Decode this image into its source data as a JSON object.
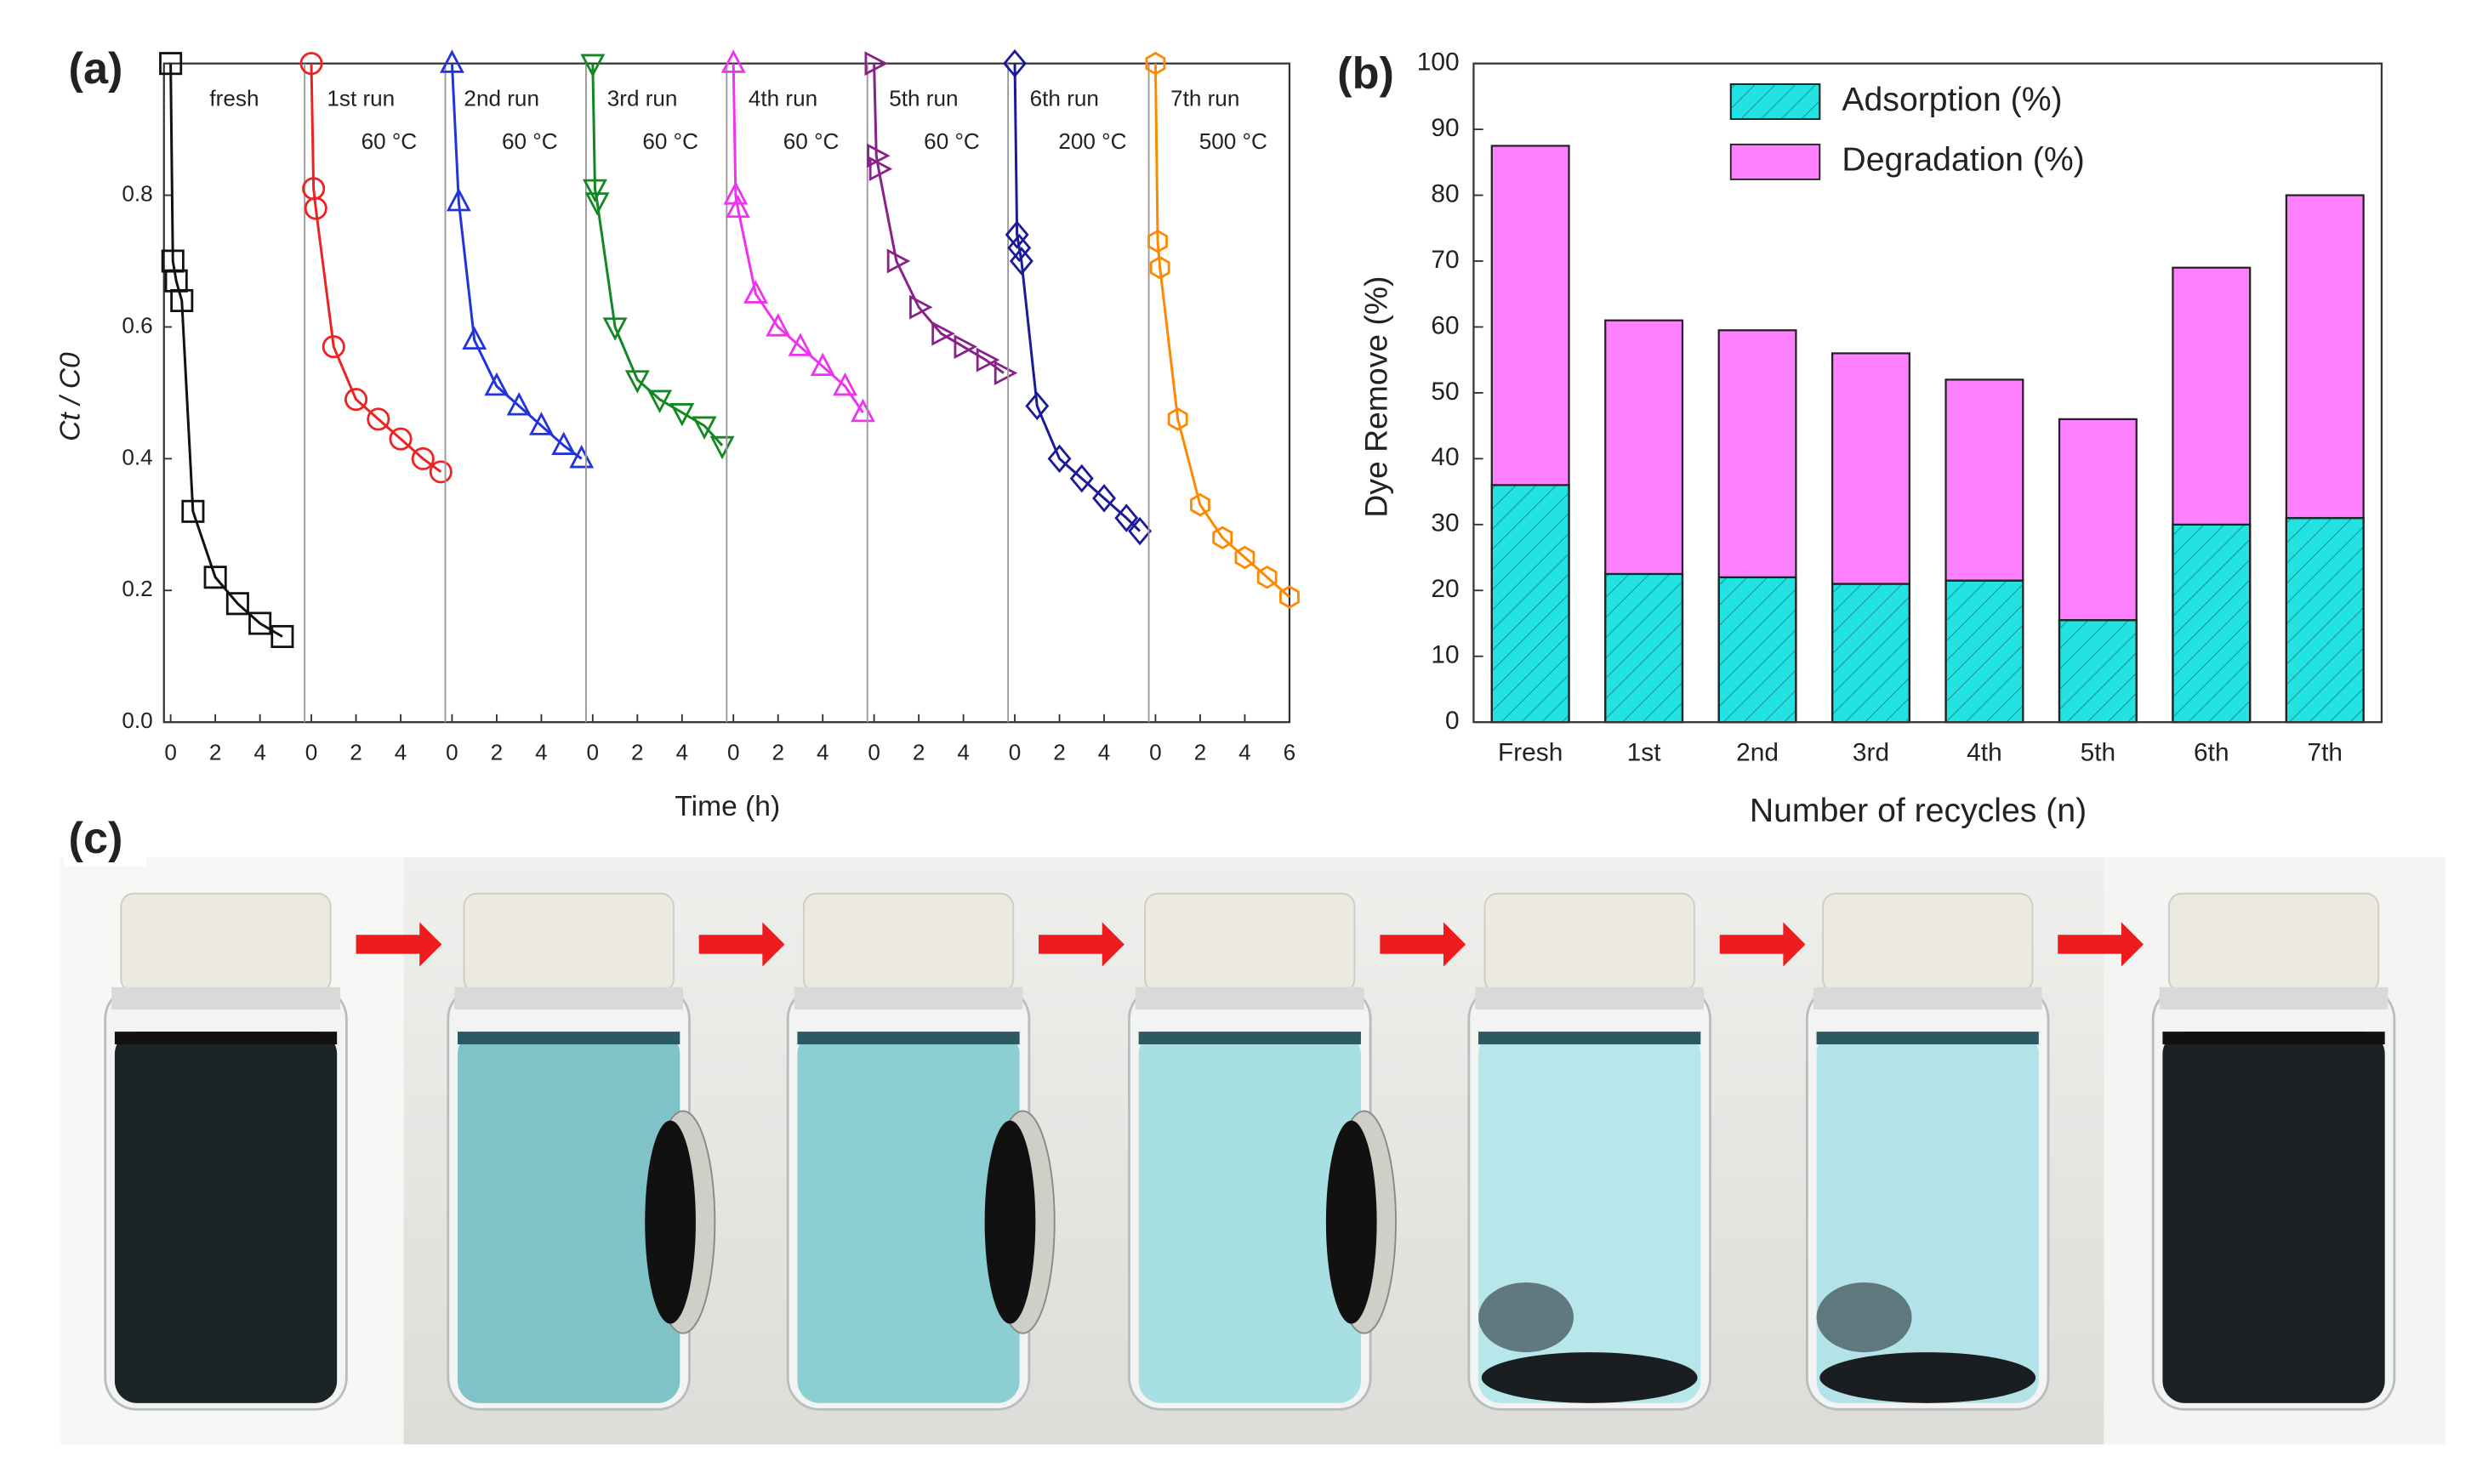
{
  "panel_labels": [
    "(a)",
    "(b)",
    "(c)"
  ],
  "chart_data": [
    {
      "type": "line",
      "ylabel": "Ct / C0",
      "xlabel": "Time (h)",
      "xlim": [
        -0.3,
        6
      ],
      "ylim": [
        0,
        1
      ],
      "yticks": [
        {
          "value": 0,
          "label": "0.0"
        },
        0.2,
        0.4,
        0.6,
        0.8
      ],
      "panels": [
        {
          "labels": [
            "fresh"
          ],
          "color": "#111111",
          "marker": "square",
          "xticks": [
            0,
            2,
            4
          ],
          "x": [
            0,
            0.1,
            0.25,
            0.5,
            1,
            2,
            3,
            4,
            5
          ],
          "values": [
            1.0,
            0.7,
            0.67,
            0.64,
            0.32,
            0.22,
            0.18,
            0.15,
            0.13
          ]
        },
        {
          "labels": [
            "1st run",
            "60 °C"
          ],
          "color": "#ee2222",
          "marker": "circle",
          "xticks": [
            0,
            2,
            4
          ],
          "x": [
            0,
            0.1,
            0.2,
            1,
            2,
            3,
            4,
            5,
            5.8
          ],
          "values": [
            1.0,
            0.81,
            0.78,
            0.57,
            0.49,
            0.46,
            0.43,
            0.4,
            0.38
          ]
        },
        {
          "labels": [
            "2nd run",
            "60 °C"
          ],
          "color": "#2233dd",
          "marker": "triangle",
          "xticks": [
            0,
            2,
            4
          ],
          "x": [
            0,
            0.3,
            1,
            2,
            3,
            4,
            5,
            5.8
          ],
          "values": [
            1.0,
            0.79,
            0.58,
            0.51,
            0.48,
            0.45,
            0.42,
            0.4
          ]
        },
        {
          "labels": [
            "3rd run",
            "60 °C"
          ],
          "color": "#118822",
          "marker": "triangle-down",
          "xticks": [
            0,
            2,
            4
          ],
          "x": [
            0,
            0.1,
            0.2,
            1,
            2,
            3,
            4,
            5,
            5.8
          ],
          "values": [
            1.0,
            0.81,
            0.79,
            0.6,
            0.52,
            0.49,
            0.47,
            0.45,
            0.42
          ]
        },
        {
          "labels": [
            "4th run",
            "60 °C"
          ],
          "color": "#ee33ee",
          "marker": "triangle",
          "xticks": [
            0,
            2,
            4
          ],
          "x": [
            0,
            0.1,
            0.2,
            1,
            2,
            3,
            4,
            5,
            5.8
          ],
          "values": [
            1.0,
            0.8,
            0.78,
            0.65,
            0.6,
            0.57,
            0.54,
            0.51,
            0.47
          ]
        },
        {
          "labels": [
            "5th run",
            "60 °C"
          ],
          "color": "#882288",
          "marker": "triangle-right",
          "xticks": [
            0,
            2,
            4
          ],
          "x": [
            0,
            0.1,
            0.2,
            1,
            2,
            3,
            4,
            5,
            5.8
          ],
          "values": [
            1.0,
            0.86,
            0.84,
            0.7,
            0.63,
            0.59,
            0.57,
            0.55,
            0.53
          ]
        },
        {
          "labels": [
            "6th run",
            "200 °C"
          ],
          "color": "#1a1a99",
          "marker": "diamond",
          "xticks": [
            0,
            2,
            4
          ],
          "x": [
            0,
            0.1,
            0.2,
            0.3,
            1,
            2,
            3,
            4,
            5,
            5.6
          ],
          "values": [
            1.0,
            0.74,
            0.72,
            0.7,
            0.48,
            0.4,
            0.37,
            0.34,
            0.31,
            0.29
          ]
        },
        {
          "labels": [
            "7th run",
            "500 °C"
          ],
          "color": "#ff8800",
          "marker": "hexagon",
          "xticks": [
            0,
            2,
            4,
            6
          ],
          "x": [
            0,
            0.1,
            0.2,
            1,
            2,
            3,
            4,
            5,
            6
          ],
          "values": [
            1.0,
            0.73,
            0.69,
            0.46,
            0.33,
            0.28,
            0.25,
            0.22,
            0.19
          ]
        }
      ]
    },
    {
      "type": "bar",
      "ylabel": "Dye Remove (%)",
      "xlabel": "Number of recycles (n)",
      "categories": [
        "Fresh",
        "1st",
        "2nd",
        "3rd",
        "4th",
        "5th",
        "6th",
        "7th"
      ],
      "ylim": [
        0,
        100
      ],
      "yticks": [
        0,
        10,
        20,
        30,
        40,
        50,
        60,
        70,
        80,
        90,
        100
      ],
      "stacked": true,
      "legend": "upper center",
      "series": [
        {
          "name": "Adsorption (%)",
          "color": "#22e2e2",
          "hatch": true,
          "values": [
            36,
            22.5,
            22,
            21,
            21.5,
            15.5,
            30,
            31
          ]
        },
        {
          "name": "Degradation (%)",
          "color": "#ff80ff",
          "hatch": false,
          "values": [
            51.5,
            38.5,
            37.5,
            35,
            30.5,
            30.5,
            39,
            49
          ]
        }
      ]
    }
  ]
}
